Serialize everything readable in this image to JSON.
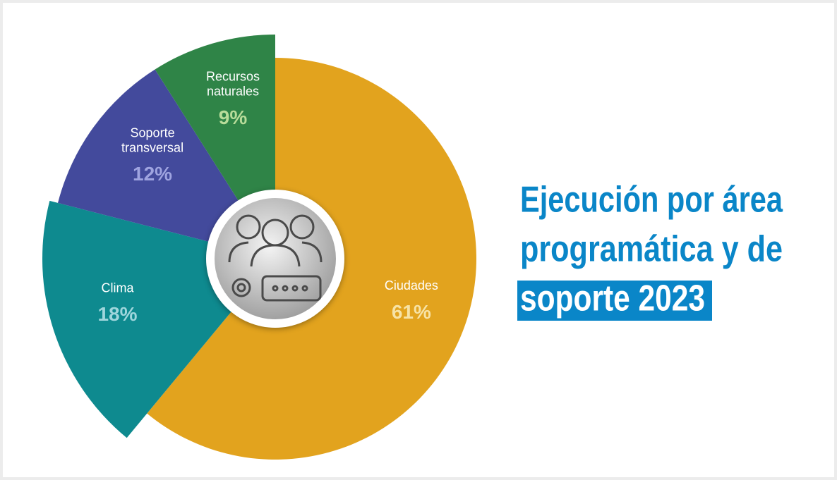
{
  "chart_data": {
    "type": "pie",
    "title_lines": [
      "Ejecución por área",
      "programática y de",
      "soporte 2023"
    ],
    "categories": [
      "Ciudades",
      "Clima",
      "Soporte transversal",
      "Recursos naturales"
    ],
    "values": [
      61,
      18,
      12,
      9
    ],
    "value_labels": [
      "61%",
      "18%",
      "12%",
      "9%"
    ],
    "colors": [
      "#e2a31e",
      "#0e8a8f",
      "#434a9c",
      "#2f8447"
    ],
    "label_colors": [
      "#f7e3a6",
      "#9fd6dc",
      "#9fa4e0",
      "#b8dc9a"
    ]
  }
}
